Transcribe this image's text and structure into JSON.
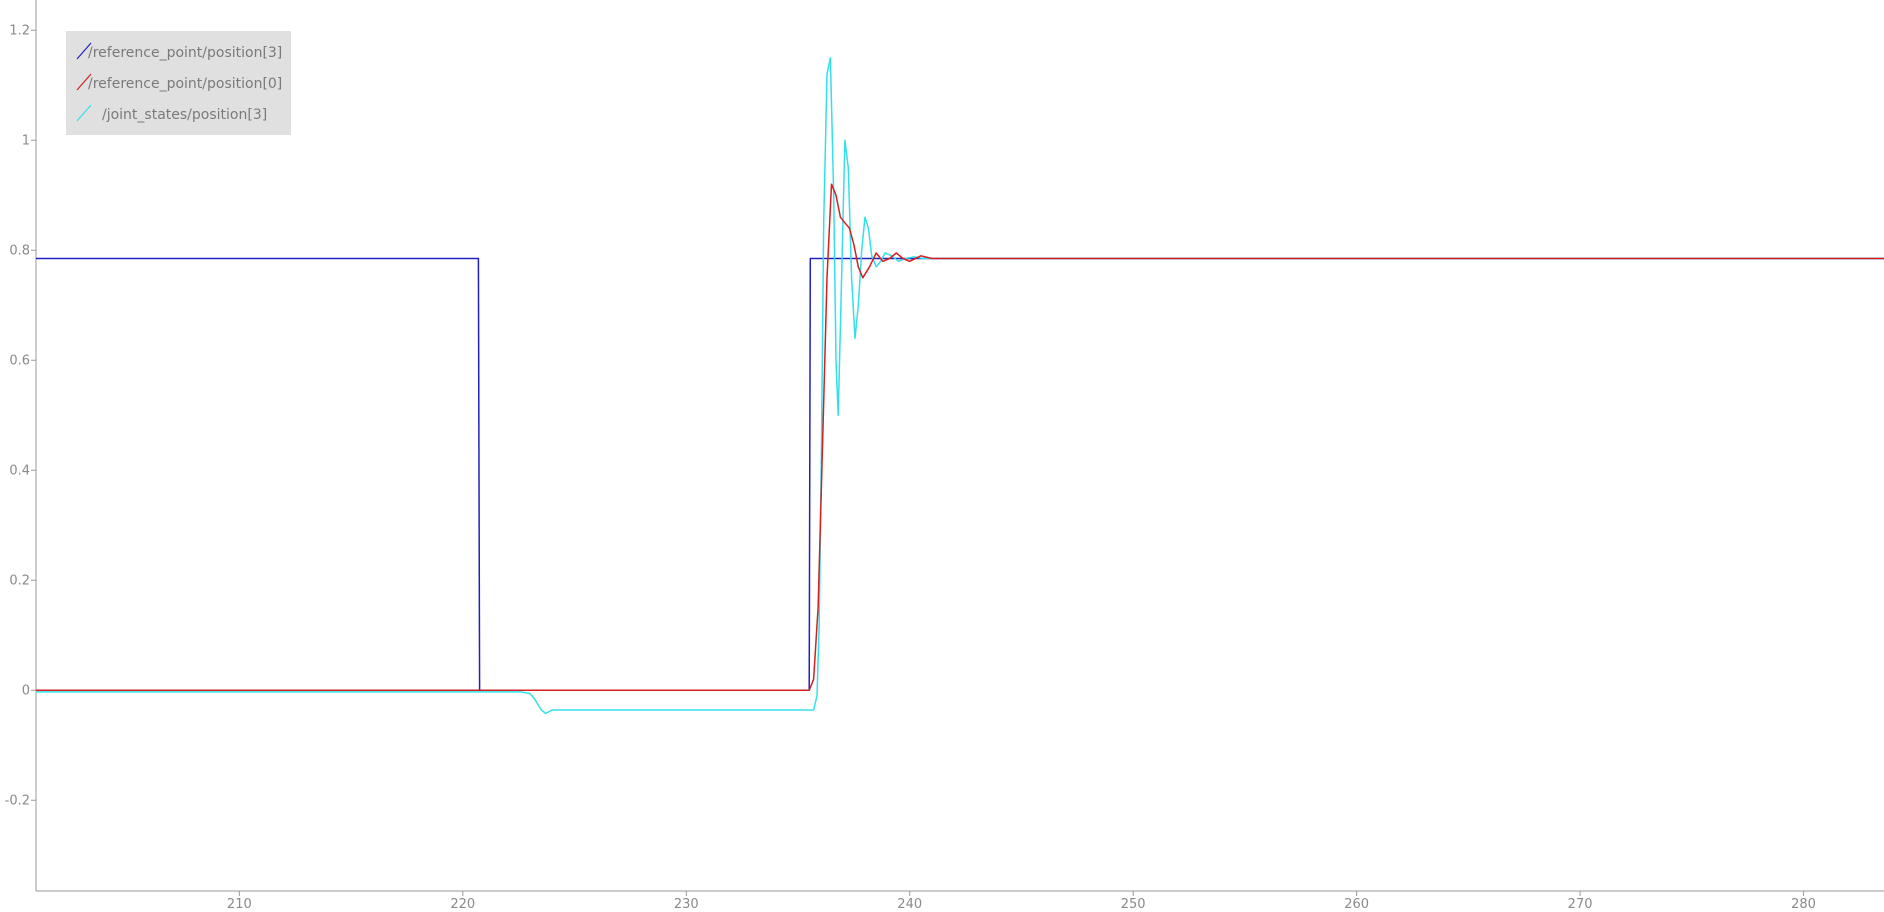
{
  "chart_data": {
    "type": "line",
    "title": "",
    "xlabel": "",
    "ylabel": "",
    "xlim": [
      200.9,
      283.6
    ],
    "ylim": [
      -0.365,
      1.255
    ],
    "grid": false,
    "legend_position": "top-left",
    "x_ticks": [
      210,
      220,
      230,
      240,
      250,
      260,
      270,
      280
    ],
    "x_tick_labels": [
      "210",
      "220",
      "230",
      "240",
      "250",
      "260",
      "270",
      "280"
    ],
    "y_ticks": [
      1.2,
      1.0,
      0.8,
      0.6,
      0.4,
      0.2,
      0.0,
      -0.2
    ],
    "y_tick_labels": [
      "1.2",
      "1",
      "0.8",
      "0.6",
      "0.4",
      "0.2",
      "0",
      "-0.2"
    ],
    "series": [
      {
        "name": "/reference_point/position[3]",
        "color": "#2020c0",
        "x": [
          200.9,
          220.7,
          220.75,
          235.5,
          235.55,
          283.6
        ],
        "y": [
          0.785,
          0.785,
          0.0,
          0.0,
          0.785,
          0.785
        ]
      },
      {
        "name": "/reference_point/position[0]",
        "color": "#d42020",
        "x": [
          200.9,
          235.5,
          235.7,
          235.9,
          236.1,
          236.3,
          236.5,
          236.7,
          236.9,
          237.1,
          237.3,
          237.5,
          237.7,
          237.9,
          238.2,
          238.5,
          238.8,
          239.1,
          239.4,
          239.7,
          240.0,
          240.5,
          241.0,
          242.0,
          283.6
        ],
        "y": [
          0.0,
          0.0,
          0.02,
          0.15,
          0.45,
          0.75,
          0.92,
          0.9,
          0.86,
          0.85,
          0.84,
          0.81,
          0.77,
          0.75,
          0.77,
          0.795,
          0.78,
          0.785,
          0.795,
          0.785,
          0.78,
          0.79,
          0.785,
          0.785,
          0.785
        ]
      },
      {
        "name": "/joint_states/position[3]",
        "color": "#33e0e8",
        "x": [
          200.9,
          222.6,
          223.0,
          223.2,
          223.5,
          223.7,
          224.0,
          224.5,
          225.0,
          235.7,
          235.85,
          235.95,
          236.05,
          236.15,
          236.3,
          236.45,
          236.6,
          236.7,
          236.8,
          236.95,
          237.1,
          237.25,
          237.4,
          237.55,
          237.7,
          237.85,
          238.0,
          238.15,
          238.3,
          238.5,
          238.7,
          238.9,
          239.2,
          239.5,
          239.8,
          240.2,
          240.6,
          241.0,
          242.0,
          283.6
        ],
        "y": [
          -0.003,
          -0.003,
          -0.006,
          -0.015,
          -0.035,
          -0.042,
          -0.036,
          -0.036,
          -0.036,
          -0.036,
          -0.01,
          0.12,
          0.45,
          0.85,
          1.12,
          1.15,
          0.9,
          0.6,
          0.5,
          0.75,
          1.0,
          0.95,
          0.75,
          0.64,
          0.7,
          0.8,
          0.86,
          0.84,
          0.79,
          0.77,
          0.78,
          0.795,
          0.79,
          0.78,
          0.785,
          0.788,
          0.785,
          0.785,
          0.785,
          0.785
        ]
      }
    ]
  }
}
